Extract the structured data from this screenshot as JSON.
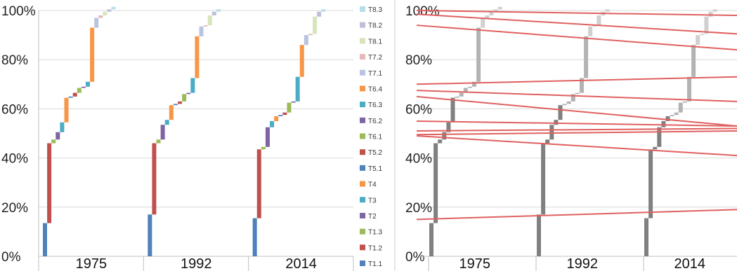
{
  "chart_data": [
    {
      "type": "bar",
      "subtype": "stacked-100-waterfall",
      "title": "",
      "xlabel": "",
      "ylabel": "",
      "ylim": [
        0,
        100
      ],
      "y_ticks": [
        "0%",
        "20%",
        "40%",
        "60%",
        "80%",
        "100%"
      ],
      "categories": [
        "1975",
        "1992",
        "2014"
      ],
      "grid": true,
      "legend_position": "right",
      "series": [
        {
          "name": "T1.1",
          "color": "#4f81bd",
          "values": [
            13.5,
            17.0,
            15.5
          ]
        },
        {
          "name": "T1.2",
          "color": "#c0504d",
          "values": [
            32.5,
            29.0,
            28.0
          ]
        },
        {
          "name": "T1.3",
          "color": "#9bbb59",
          "values": [
            1.5,
            1.5,
            1.0
          ]
        },
        {
          "name": "T2",
          "color": "#8064a2",
          "values": [
            3.0,
            6.0,
            8.0
          ]
        },
        {
          "name": "T3",
          "color": "#4bacc6",
          "values": [
            4.0,
            2.0,
            2.5
          ]
        },
        {
          "name": "T4",
          "color": "#f79646",
          "values": [
            10.0,
            6.0,
            2.0
          ]
        },
        {
          "name": "T5.1",
          "color": "#4f81bd",
          "values": [
            0.5,
            0.5,
            0.5
          ]
        },
        {
          "name": "T5.2",
          "color": "#c0504d",
          "values": [
            1.5,
            1.0,
            1.0
          ]
        },
        {
          "name": "T6.1",
          "color": "#9bbb59",
          "values": [
            2.0,
            3.0,
            4.0
          ]
        },
        {
          "name": "T6.2",
          "color": "#8064a2",
          "values": [
            0.5,
            0.5,
            0.5
          ]
        },
        {
          "name": "T6.3",
          "color": "#4bacc6",
          "values": [
            2.0,
            6.0,
            10.0
          ]
        },
        {
          "name": "T6.4",
          "color": "#f79646",
          "values": [
            22.0,
            17.0,
            13.0
          ]
        },
        {
          "name": "T7.1",
          "color": "#b8c4e0",
          "values": [
            4.0,
            4.0,
            4.0
          ]
        },
        {
          "name": "T7.2",
          "color": "#e6b8b7",
          "values": [
            1.0,
            0.5,
            0.5
          ]
        },
        {
          "name": "T8.1",
          "color": "#d7e4bc",
          "values": [
            1.5,
            4.0,
            7.0
          ]
        },
        {
          "name": "T8.2",
          "color": "#bfbfd9",
          "values": [
            1.0,
            1.5,
            2.0
          ]
        },
        {
          "name": "T8.3",
          "color": "#b7dee8",
          "values": [
            1.0,
            1.0,
            1.0
          ]
        }
      ]
    },
    {
      "type": "bar",
      "subtype": "stacked-100-waterfall-with-trend-lines",
      "title": "",
      "xlabel": "",
      "ylabel": "",
      "ylim": [
        0,
        100
      ],
      "y_ticks": [
        "0%",
        "20%",
        "40%",
        "60%",
        "80%",
        "100%"
      ],
      "categories": [
        "1975",
        "1992",
        "2014"
      ],
      "grid": true,
      "legend_position": "none",
      "bar_colors": [
        "#808080",
        "#b3b3b3",
        "#d0d0d0"
      ],
      "trend_line_color": "#e06060",
      "trend_lines": [
        {
          "y_start": 15.0,
          "y_end": 19.0
        },
        {
          "y_start": 49.0,
          "y_end": 41.0
        },
        {
          "y_start": 49.5,
          "y_end": 51.0
        },
        {
          "y_start": 51.0,
          "y_end": 52.0
        },
        {
          "y_start": 55.0,
          "y_end": 53.0
        },
        {
          "y_start": 65.0,
          "y_end": 53.0
        },
        {
          "y_start": 67.5,
          "y_end": 63.0
        },
        {
          "y_start": 70.0,
          "y_end": 73.0
        },
        {
          "y_start": 94.0,
          "y_end": 84.0
        },
        {
          "y_start": 98.5,
          "y_end": 90.5
        },
        {
          "y_start": 100.0,
          "y_end": 98.0
        }
      ]
    }
  ]
}
